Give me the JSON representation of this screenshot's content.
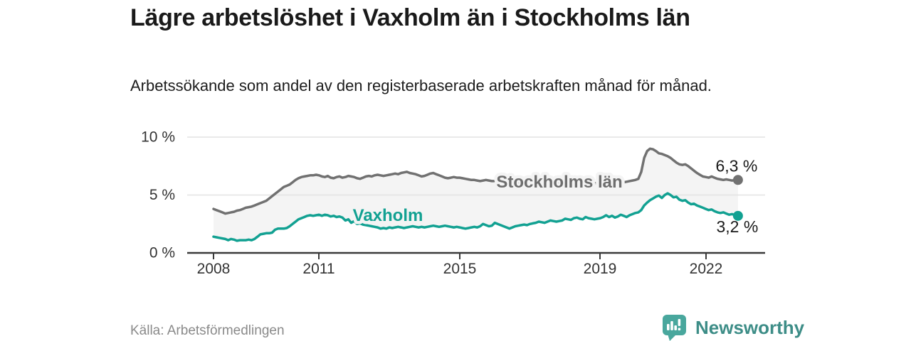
{
  "header": {
    "title": "Lägre arbetslöshet i Vaxholm än i Stockholms län",
    "subtitle": "Arbetssökande som andel av den registerbaserade arbetskraften månad för månad."
  },
  "footer": {
    "source": "Källa: Arbetsförmedlingen",
    "brand": "Newsworthy"
  },
  "colors": {
    "stockholm_line": "#717171",
    "stockholm_label": "#6e6e6e",
    "vaxholm_line": "#12a192",
    "band_fill": "#f4f4f4",
    "gridline": "#e2e2e2",
    "axis": "#3a3a3a",
    "brand_icon": "#49a79d",
    "brand_text": "#3d8d87"
  },
  "chart_data": {
    "type": "line",
    "unit": "%",
    "frequency": "monthly",
    "x_start": "2008-01",
    "x_end": "2022-12",
    "x_tick_labels": [
      "2008",
      "2011",
      "2015",
      "2019",
      "2022"
    ],
    "y_tick_labels": [
      "0 %",
      "5 %",
      "10 %"
    ],
    "y_ticks": [
      0,
      5,
      10
    ],
    "ylim": [
      0,
      10.5
    ],
    "grid": "horizontal",
    "legend": "inline-labels",
    "series": [
      {
        "name": "Stockholms län",
        "color": "#717171",
        "end_label": "6,3 %",
        "end_value": 6.3,
        "values": [
          3.8,
          3.7,
          3.6,
          3.5,
          3.4,
          3.45,
          3.5,
          3.55,
          3.65,
          3.7,
          3.8,
          3.9,
          3.95,
          4.0,
          4.1,
          4.2,
          4.3,
          4.4,
          4.5,
          4.7,
          4.9,
          5.1,
          5.3,
          5.5,
          5.7,
          5.8,
          5.9,
          6.1,
          6.3,
          6.45,
          6.55,
          6.6,
          6.65,
          6.7,
          6.7,
          6.75,
          6.7,
          6.6,
          6.55,
          6.65,
          6.5,
          6.45,
          6.55,
          6.6,
          6.5,
          6.55,
          6.65,
          6.6,
          6.55,
          6.45,
          6.4,
          6.5,
          6.6,
          6.65,
          6.6,
          6.7,
          6.75,
          6.7,
          6.65,
          6.7,
          6.75,
          6.8,
          6.85,
          6.8,
          6.9,
          6.95,
          7.0,
          6.9,
          6.85,
          6.8,
          6.7,
          6.6,
          6.65,
          6.75,
          6.85,
          6.9,
          6.8,
          6.7,
          6.6,
          6.5,
          6.45,
          6.5,
          6.55,
          6.5,
          6.5,
          6.45,
          6.4,
          6.35,
          6.3,
          6.3,
          6.25,
          6.2,
          6.25,
          6.3,
          6.25,
          6.2,
          6.2,
          6.15,
          6.1,
          6.1,
          6.05,
          6.0,
          6.05,
          6.1,
          6.1,
          6.15,
          6.1,
          6.05,
          6.1,
          6.15,
          6.2,
          6.15,
          6.1,
          6.05,
          6.0,
          6.05,
          6.1,
          6.05,
          6.1,
          6.15,
          6.1,
          6.05,
          6.0,
          5.95,
          6.0,
          6.05,
          6.0,
          6.05,
          6.1,
          6.05,
          6.0,
          6.05,
          6.0,
          6.05,
          6.1,
          6.05,
          6.0,
          6.05,
          6.1,
          6.05,
          6.1,
          6.15,
          6.2,
          6.25,
          6.3,
          6.4,
          7.0,
          8.2,
          8.8,
          9.0,
          8.95,
          8.8,
          8.6,
          8.55,
          8.45,
          8.35,
          8.2,
          8.0,
          7.8,
          7.65,
          7.6,
          7.65,
          7.5,
          7.3,
          7.1,
          6.9,
          6.75,
          6.6,
          6.55,
          6.5,
          6.6,
          6.5,
          6.4,
          6.35,
          6.3,
          6.35,
          6.3,
          6.25,
          6.3,
          6.3
        ]
      },
      {
        "name": "Vaxholm",
        "color": "#12a192",
        "end_label": "3,2 %",
        "end_value": 3.2,
        "values": [
          1.4,
          1.35,
          1.3,
          1.25,
          1.2,
          1.1,
          1.2,
          1.15,
          1.05,
          1.1,
          1.1,
          1.1,
          1.15,
          1.1,
          1.2,
          1.4,
          1.6,
          1.65,
          1.7,
          1.7,
          1.75,
          2.0,
          2.1,
          2.1,
          2.1,
          2.15,
          2.3,
          2.5,
          2.7,
          2.9,
          3.0,
          3.1,
          3.2,
          3.25,
          3.2,
          3.25,
          3.3,
          3.2,
          3.3,
          3.25,
          3.15,
          3.2,
          3.1,
          3.15,
          3.05,
          2.8,
          2.9,
          2.6,
          2.75,
          2.5,
          2.55,
          2.45,
          2.4,
          2.35,
          2.3,
          2.25,
          2.2,
          2.1,
          2.15,
          2.1,
          2.2,
          2.15,
          2.2,
          2.25,
          2.2,
          2.15,
          2.2,
          2.25,
          2.3,
          2.25,
          2.2,
          2.25,
          2.2,
          2.25,
          2.3,
          2.35,
          2.3,
          2.25,
          2.3,
          2.35,
          2.3,
          2.25,
          2.2,
          2.25,
          2.2,
          2.15,
          2.1,
          2.15,
          2.2,
          2.25,
          2.2,
          2.3,
          2.5,
          2.4,
          2.3,
          2.35,
          2.6,
          2.5,
          2.4,
          2.3,
          2.2,
          2.1,
          2.2,
          2.3,
          2.35,
          2.4,
          2.45,
          2.4,
          2.5,
          2.55,
          2.6,
          2.7,
          2.65,
          2.6,
          2.7,
          2.8,
          2.75,
          2.7,
          2.75,
          2.8,
          2.95,
          2.9,
          2.85,
          3.0,
          3.05,
          2.95,
          2.9,
          3.1,
          3.0,
          2.95,
          2.9,
          2.95,
          3.0,
          3.1,
          3.25,
          3.1,
          3.2,
          3.05,
          3.15,
          3.3,
          3.2,
          3.1,
          3.25,
          3.35,
          3.45,
          3.5,
          3.7,
          4.1,
          4.35,
          4.55,
          4.7,
          4.85,
          4.95,
          4.75,
          5.0,
          5.15,
          5.0,
          4.8,
          4.85,
          4.6,
          4.5,
          4.55,
          4.35,
          4.2,
          4.25,
          4.1,
          4.0,
          3.9,
          3.8,
          3.7,
          3.75,
          3.6,
          3.5,
          3.45,
          3.5,
          3.4,
          3.3,
          3.35,
          3.25,
          3.2
        ]
      }
    ]
  }
}
